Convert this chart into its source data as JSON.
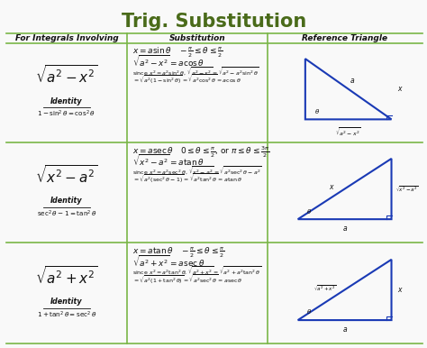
{
  "title": "Trig. Substitution",
  "title_color": "#4a6b1a",
  "bg_color": "#f9f9f9",
  "col_headers": [
    "For Integrals Involving",
    "Substitution",
    "Reference Triangle"
  ],
  "green": "#7ab648",
  "rows": [
    {
      "integral": "$\\sqrt{a^2 - x^2}$",
      "identity_label": "Identity",
      "identity": "$1 - \\sin^2\\theta = \\cos^2\\theta$",
      "sub_line1": "$x = a\\sin\\theta \\quad -\\frac{\\pi}{2} \\leq \\theta \\leq \\frac{\\pi}{2}$",
      "sub_line2": "$\\sqrt{a^2 - x^2} = a\\cos\\theta$",
      "sub_line3": "since $x^2 = a^2\\sin^2\\theta$, $\\sqrt{a^2-x^2} = \\sqrt{a^2 - a^2\\sin^2\\theta}$",
      "sub_line4": "$= \\sqrt{a^2(1-\\sin^2\\theta)} = \\sqrt{a^2\\cos^2\\theta} = a\\cos\\theta$",
      "tri_type": 1
    },
    {
      "integral": "$\\sqrt{x^2 - a^2}$",
      "identity_label": "Identity",
      "identity": "$\\sec^2\\theta - 1 = \\tan^2\\theta$",
      "sub_line1": "$x = a\\sec\\theta \\quad 0 \\leq \\theta \\leq \\frac{\\pi}{2}$, or $\\pi \\leq \\theta \\leq \\frac{3\\pi}{2}$",
      "sub_line2": "$\\sqrt{x^2 - a^2} = a\\tan\\theta$",
      "sub_line3": "since $x^2 = a^2\\sec^2\\theta$, $\\sqrt{x^2-a^2} = \\sqrt{a^2\\sec^2\\theta - a^2}$",
      "sub_line4": "$= \\sqrt{a^2(\\sec^2\\theta-1)} = \\sqrt{a^2\\tan^2\\theta} = a\\tan\\theta$",
      "tri_type": 2
    },
    {
      "integral": "$\\sqrt{a^2 + x^2}$",
      "identity_label": "Identity",
      "identity": "$1 + \\tan^2\\theta = \\sec^2\\theta$",
      "sub_line1": "$x = a\\tan\\theta \\quad -\\frac{\\pi}{2} \\leq \\theta \\leq \\frac{\\pi}{2}$",
      "sub_line2": "$\\sqrt{a^2 + x^2} = a\\sec\\theta$",
      "sub_line3": "since $x^2 = a^2\\tan^2\\theta$, $\\sqrt{a^2+x^2} = \\sqrt{a^2 + a^2\\tan^2\\theta}$",
      "sub_line4": "$= \\sqrt{a^2(1+\\tan^2\\theta)} = \\sqrt{a^2\\sec^2\\theta} = a\\sec\\theta$",
      "tri_type": 3
    }
  ]
}
